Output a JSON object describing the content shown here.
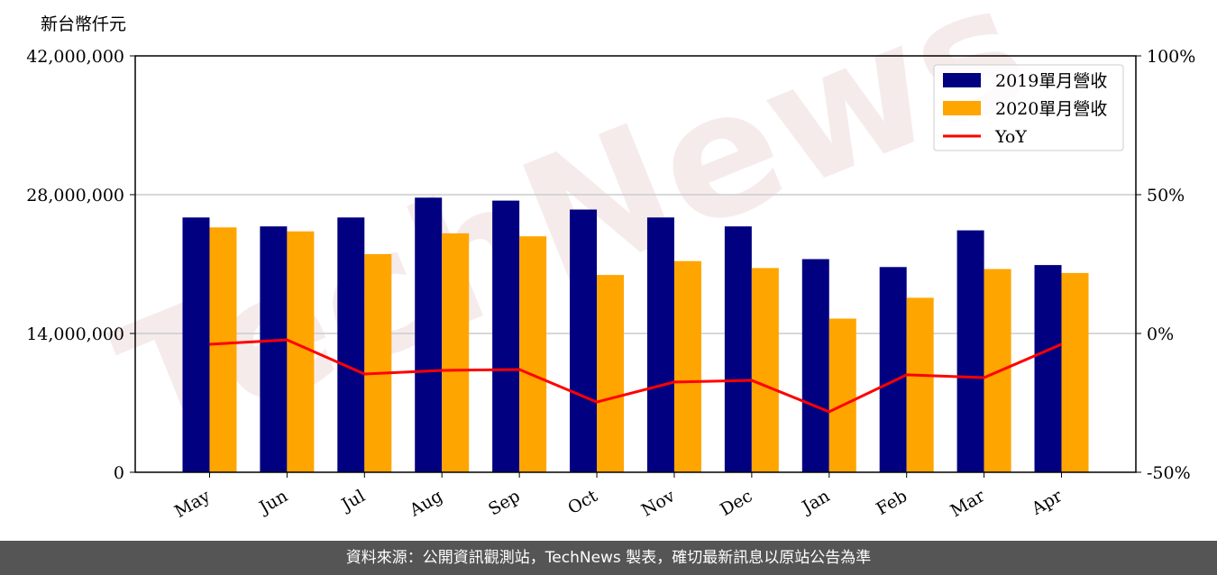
{
  "chart_data": {
    "type": "bar",
    "y_label": "新台幣仟元",
    "watermark": "TechNews",
    "categories": [
      "May",
      "Jun",
      "Jul",
      "Aug",
      "Sep",
      "Oct",
      "Nov",
      "Dec",
      "Jan",
      "Feb",
      "Mar",
      "Apr"
    ],
    "series": [
      {
        "name": "2019單月營收",
        "color": "#000080",
        "values": [
          25700000,
          24800000,
          25700000,
          27700000,
          27400000,
          26500000,
          25700000,
          24800000,
          21500000,
          20700000,
          24400000,
          20900000
        ]
      },
      {
        "name": "2020單月營收",
        "color": "#ffa500",
        "values": [
          24700000,
          24300000,
          22000000,
          24100000,
          23800000,
          19900000,
          21300000,
          20600000,
          15500000,
          17600000,
          20500000,
          20100000
        ]
      },
      {
        "name": "YoY",
        "type": "line",
        "axis": "y2",
        "color": "#ff0000",
        "values": [
          -3.9,
          -2.3,
          -14.6,
          -13.3,
          -13.0,
          -24.7,
          -17.5,
          -16.9,
          -28.2,
          -14.9,
          -15.9,
          -3.9
        ]
      }
    ],
    "ylim": [
      0,
      42000000
    ],
    "yticks": [
      {
        "value": 0,
        "label": "0"
      },
      {
        "value": 14000000,
        "label": "14,000,000"
      },
      {
        "value": 28000000,
        "label": "28,000,000"
      },
      {
        "value": 42000000,
        "label": "42,000,000"
      }
    ],
    "y2lim": [
      -50,
      100
    ],
    "y2ticks": [
      {
        "value": -50,
        "label": "-50%"
      },
      {
        "value": 0,
        "label": "0%"
      },
      {
        "value": 50,
        "label": "50%"
      },
      {
        "value": 100,
        "label": "100%"
      }
    ],
    "grid": true,
    "legend": "upper right",
    "footer": "資料來源：公開資訊觀測站，TechNews 製表，確切最新訊息以原站公告為準"
  }
}
